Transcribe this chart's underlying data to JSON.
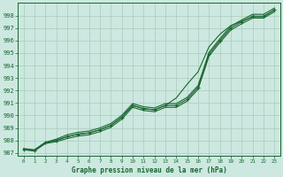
{
  "xlabel": "Graphe pression niveau de la mer (hPa)",
  "background_color": "#cce8e0",
  "grid_color": "#aaccbb",
  "line_color": "#1a6630",
  "yticks": [
    987,
    988,
    989,
    990,
    991,
    992,
    993,
    994,
    995,
    996,
    997,
    998
  ],
  "xticks": [
    0,
    1,
    2,
    3,
    4,
    5,
    6,
    7,
    8,
    9,
    10,
    11,
    12,
    13,
    14,
    15,
    16,
    17,
    18,
    19,
    20,
    21,
    22,
    23
  ],
  "ylim": [
    986.8,
    999.0
  ],
  "xlim": [
    -0.5,
    23.5
  ],
  "main_y": [
    987.3,
    987.2,
    987.8,
    988.0,
    988.3,
    988.5,
    988.6,
    988.85,
    989.2,
    989.85,
    990.8,
    990.55,
    990.45,
    990.8,
    990.8,
    991.3,
    992.25,
    994.9,
    996.0,
    997.0,
    997.5,
    997.95,
    997.95,
    998.45
  ],
  "upper_y": [
    987.35,
    987.25,
    987.85,
    988.1,
    988.45,
    988.65,
    988.75,
    989.0,
    989.35,
    990.0,
    990.95,
    990.7,
    990.6,
    990.95,
    990.95,
    991.45,
    992.4,
    995.05,
    996.15,
    997.15,
    997.65,
    998.1,
    998.1,
    998.6
  ],
  "lower_y": [
    987.25,
    987.15,
    987.75,
    987.9,
    988.15,
    988.35,
    988.45,
    988.7,
    989.05,
    989.7,
    990.65,
    990.4,
    990.3,
    990.65,
    990.65,
    991.15,
    992.1,
    994.75,
    995.85,
    996.85,
    997.35,
    997.8,
    997.8,
    998.3
  ],
  "diverge_y": [
    987.3,
    987.2,
    987.8,
    988.0,
    988.3,
    988.5,
    988.6,
    988.85,
    989.2,
    989.85,
    990.8,
    990.55,
    990.45,
    990.8,
    991.4,
    992.5,
    993.5,
    995.5,
    996.5,
    997.2,
    997.55,
    997.9,
    997.9,
    998.45
  ]
}
